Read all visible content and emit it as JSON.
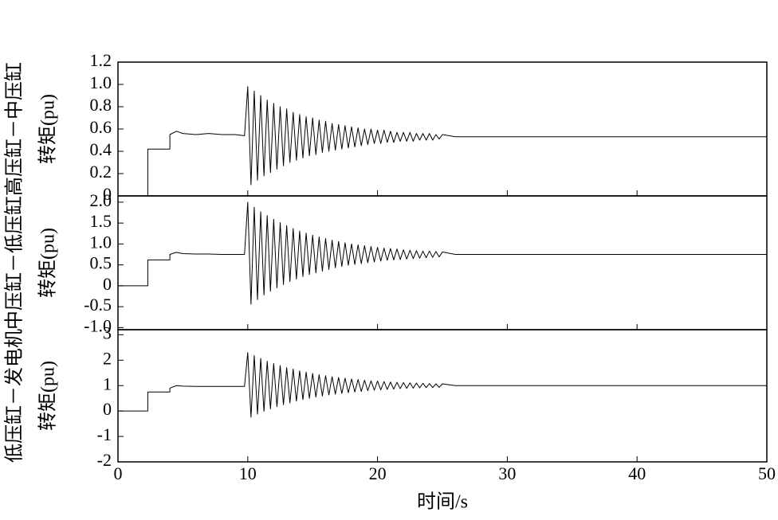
{
  "chart_data": [
    {
      "type": "line",
      "ylabel": [
        "高压缸－中压缸",
        "转矩(pu)"
      ],
      "color": "#000000",
      "ylim": [
        0,
        1.2
      ],
      "yticks": [
        0,
        0.2,
        0.4,
        0.6,
        0.8,
        {
          "value": 1,
          "label": "1.0"
        },
        1.2
      ],
      "x": [
        0,
        2.3,
        2.3,
        4,
        4,
        4.5,
        5,
        6,
        7,
        8,
        9,
        9.75,
        10,
        10.25,
        10.5,
        10.75,
        11,
        11.25,
        11.5,
        11.75,
        12,
        12.25,
        12.5,
        12.75,
        13,
        13.25,
        13.5,
        13.75,
        14,
        14.25,
        14.5,
        14.75,
        15,
        15.25,
        15.5,
        15.75,
        16,
        16.25,
        16.5,
        16.75,
        17,
        17.25,
        17.5,
        17.75,
        18,
        18.25,
        18.5,
        18.75,
        19,
        19.25,
        19.5,
        19.75,
        20,
        20.25,
        20.5,
        20.75,
        21,
        21.25,
        21.5,
        21.75,
        22,
        22.25,
        22.5,
        22.75,
        23,
        23.25,
        23.5,
        23.75,
        24,
        24.25,
        24.5,
        24.75,
        25,
        26,
        30,
        40,
        50
      ],
      "values": [
        0,
        0,
        0.42,
        0.42,
        0.55,
        0.58,
        0.56,
        0.55,
        0.56,
        0.55,
        0.55,
        0.54,
        0.98,
        0.1,
        0.94,
        0.14,
        0.9,
        0.18,
        0.86,
        0.21,
        0.83,
        0.24,
        0.8,
        0.27,
        0.78,
        0.3,
        0.75,
        0.32,
        0.73,
        0.34,
        0.71,
        0.36,
        0.7,
        0.37,
        0.68,
        0.39,
        0.67,
        0.4,
        0.65,
        0.41,
        0.64,
        0.42,
        0.63,
        0.43,
        0.62,
        0.44,
        0.61,
        0.45,
        0.6,
        0.46,
        0.6,
        0.47,
        0.59,
        0.47,
        0.59,
        0.48,
        0.58,
        0.48,
        0.57,
        0.49,
        0.57,
        0.49,
        0.57,
        0.49,
        0.56,
        0.5,
        0.56,
        0.5,
        0.56,
        0.5,
        0.55,
        0.51,
        0.55,
        0.53,
        0.53,
        0.53,
        0.53
      ]
    },
    {
      "type": "line",
      "ylabel": [
        "中压缸－低压缸",
        "转矩(pu)"
      ],
      "color": "#000000",
      "ylim": [
        -1.05,
        2.15
      ],
      "yticks": [
        {
          "value": -1,
          "label": "-1.0"
        },
        -0.5,
        0,
        0.5,
        {
          "value": 1,
          "label": "1.0"
        },
        1.5,
        {
          "value": 2,
          "label": "2.0"
        }
      ],
      "x": [
        0,
        2.3,
        2.3,
        4,
        4,
        4.5,
        5,
        6,
        7,
        8,
        9,
        9.75,
        10,
        10.25,
        10.5,
        10.75,
        11,
        11.25,
        11.5,
        11.75,
        12,
        12.25,
        12.5,
        12.75,
        13,
        13.25,
        13.5,
        13.75,
        14,
        14.25,
        14.5,
        14.75,
        15,
        15.25,
        15.5,
        15.75,
        16,
        16.25,
        16.5,
        16.75,
        17,
        17.25,
        17.5,
        17.75,
        18,
        18.25,
        18.5,
        18.75,
        19,
        19.25,
        19.5,
        19.75,
        20,
        20.25,
        20.5,
        20.75,
        21,
        21.25,
        21.5,
        21.75,
        22,
        22.25,
        22.5,
        22.75,
        23,
        23.25,
        23.5,
        23.75,
        24,
        24.25,
        24.5,
        24.75,
        25,
        26,
        30,
        40,
        50
      ],
      "values": [
        0,
        0,
        0.62,
        0.62,
        0.75,
        0.8,
        0.77,
        0.76,
        0.76,
        0.75,
        0.75,
        0.75,
        2.0,
        -0.44,
        1.88,
        -0.33,
        1.77,
        -0.22,
        1.68,
        -0.13,
        1.59,
        -0.05,
        1.51,
        0.03,
        1.44,
        0.1,
        1.37,
        0.16,
        1.31,
        0.22,
        1.26,
        0.27,
        1.21,
        0.31,
        1.17,
        0.35,
        1.13,
        0.39,
        1.09,
        0.43,
        1.06,
        0.46,
        1.03,
        0.49,
        1.0,
        0.51,
        0.98,
        0.53,
        0.96,
        0.55,
        0.94,
        0.57,
        0.92,
        0.59,
        0.9,
        0.61,
        0.89,
        0.62,
        0.88,
        0.63,
        0.86,
        0.64,
        0.85,
        0.65,
        0.84,
        0.66,
        0.83,
        0.67,
        0.83,
        0.68,
        0.82,
        0.69,
        0.81,
        0.75,
        0.75,
        0.75,
        0.75
      ]
    },
    {
      "type": "line",
      "ylabel": [
        "低压缸－发电机",
        "转矩(pu)"
      ],
      "xlabel": "时间/s",
      "color": "#000000",
      "xlim": [
        0,
        50
      ],
      "xticks": [
        0,
        10,
        20,
        30,
        40,
        50
      ],
      "ylim": [
        -2,
        3.2
      ],
      "yticks": [
        -2,
        -1,
        0,
        1,
        2,
        3
      ],
      "x": [
        0,
        2.3,
        2.3,
        4,
        4,
        4.5,
        5,
        6,
        7,
        8,
        9,
        9.75,
        10,
        10.25,
        10.5,
        10.75,
        11,
        11.25,
        11.5,
        11.75,
        12,
        12.25,
        12.5,
        12.75,
        13,
        13.25,
        13.5,
        13.75,
        14,
        14.25,
        14.5,
        14.75,
        15,
        15.25,
        15.5,
        15.75,
        16,
        16.25,
        16.5,
        16.75,
        17,
        17.25,
        17.5,
        17.75,
        18,
        18.25,
        18.5,
        18.75,
        19,
        19.25,
        19.5,
        19.75,
        20,
        20.25,
        20.5,
        20.75,
        21,
        21.25,
        21.5,
        21.75,
        22,
        22.25,
        22.5,
        22.75,
        23,
        23.25,
        23.5,
        23.75,
        24,
        24.25,
        24.5,
        24.75,
        25,
        26,
        30,
        40,
        50
      ],
      "values": [
        0,
        0,
        0.75,
        0.75,
        0.9,
        1.0,
        0.98,
        0.97,
        0.97,
        0.97,
        0.97,
        0.97,
        2.3,
        -0.24,
        2.18,
        -0.12,
        2.07,
        -0.01,
        1.96,
        0.08,
        1.87,
        0.17,
        1.79,
        0.25,
        1.71,
        0.32,
        1.65,
        0.39,
        1.58,
        0.45,
        1.53,
        0.5,
        1.48,
        0.55,
        1.43,
        0.59,
        1.39,
        0.63,
        1.35,
        0.66,
        1.32,
        0.69,
        1.29,
        0.72,
        1.26,
        0.75,
        1.24,
        0.77,
        1.21,
        0.8,
        1.19,
        0.82,
        1.18,
        0.83,
        1.16,
        0.85,
        1.14,
        0.86,
        1.13,
        0.88,
        1.12,
        0.89,
        1.11,
        0.9,
        1.1,
        0.91,
        1.09,
        0.92,
        1.08,
        0.92,
        1.07,
        0.93,
        1.07,
        1.0,
        1.0,
        1.0,
        1.0
      ]
    }
  ]
}
